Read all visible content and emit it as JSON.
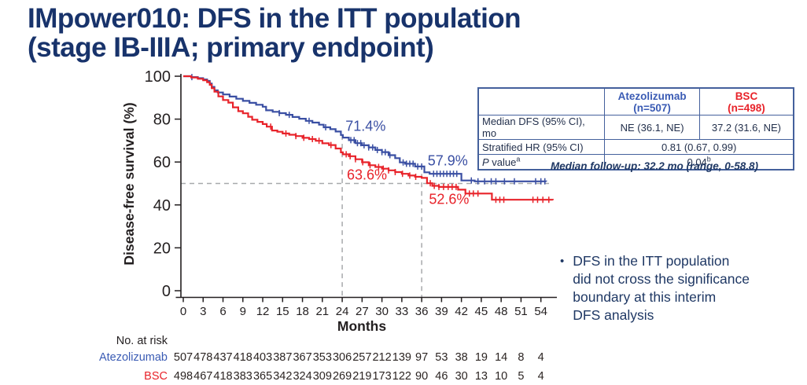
{
  "slide": {
    "title_line1": "IMpower010: DFS in the ITT population",
    "title_line2": "(stage IB-IIIA; primary endpoint)",
    "title_color": "#18336b"
  },
  "chart_data": {
    "type": "line",
    "subtype": "kaplan-meier-step",
    "xlabel": "Months",
    "ylabel": "Disease-free survival (%)",
    "xlim": [
      0,
      54
    ],
    "ylim": [
      0,
      100
    ],
    "xticks": [
      0,
      3,
      6,
      9,
      12,
      15,
      18,
      21,
      24,
      27,
      30,
      33,
      36,
      39,
      42,
      45,
      48,
      51,
      54
    ],
    "yticks": [
      0,
      20,
      40,
      60,
      80,
      100
    ],
    "grid": false,
    "axis_color": "#231f20",
    "reference_lines": {
      "dash_color": "#a7a9ac",
      "horizontal_pct": 50,
      "vertical": [
        {
          "month": 24,
          "top_pct": 72.5
        },
        {
          "month": 36,
          "top_pct": 58.5
        }
      ]
    },
    "series": [
      {
        "name": "Atezolizumab",
        "color": "#3a4fa3",
        "points": [
          [
            0,
            100
          ],
          [
            1.2,
            99.6
          ],
          [
            2.2,
            99.1
          ],
          [
            3,
            98.5
          ],
          [
            3.6,
            97.8
          ],
          [
            4,
            96.6
          ],
          [
            4.3,
            95
          ],
          [
            4.7,
            93.4
          ],
          [
            5.2,
            92.4
          ],
          [
            6,
            91.5
          ],
          [
            7,
            90.5
          ],
          [
            8,
            89.5
          ],
          [
            9,
            88.5
          ],
          [
            10,
            87.6
          ],
          [
            11,
            86.7
          ],
          [
            12,
            85.8
          ],
          [
            12.5,
            84.1
          ],
          [
            13.5,
            83.4
          ],
          [
            14.5,
            82.8
          ],
          [
            15.5,
            82
          ],
          [
            16.5,
            81
          ],
          [
            17.5,
            80.2
          ],
          [
            18.5,
            79.2
          ],
          [
            19.5,
            78.4
          ],
          [
            20.5,
            77.4
          ],
          [
            21.2,
            76.2
          ],
          [
            22.2,
            75.3
          ],
          [
            23,
            74.2
          ],
          [
            23.8,
            72.6
          ],
          [
            24.1,
            71.4
          ],
          [
            25,
            70.2
          ],
          [
            26,
            68.8
          ],
          [
            27,
            67.8
          ],
          [
            28,
            66.8
          ],
          [
            29,
            65.6
          ],
          [
            30,
            64.6
          ],
          [
            31,
            63.2
          ],
          [
            32,
            61.8
          ],
          [
            32.7,
            59.8
          ],
          [
            33.5,
            59.2
          ],
          [
            35,
            57.9
          ],
          [
            36.4,
            55.2
          ],
          [
            37.2,
            54.5
          ],
          [
            42,
            51.4
          ],
          [
            44,
            51
          ],
          [
            54.8,
            50.9
          ]
        ],
        "censor_months": [
          1.3,
          14.5,
          16,
          19,
          21.5,
          25.3,
          25.8,
          26.3,
          26.8,
          27.3,
          28,
          28.6,
          29.3,
          30,
          30.5,
          31.2,
          33.2,
          33.7,
          34.2,
          34.7,
          35.4,
          36,
          37.8,
          38.3,
          38.8,
          39.3,
          39.8,
          40.3,
          40.8,
          41.3,
          43.5,
          44.5,
          45.5,
          46.5,
          47.2,
          48.5,
          50,
          53.2,
          54,
          54.6
        ]
      },
      {
        "name": "BSC",
        "color": "#e8232a",
        "points": [
          [
            0,
            100
          ],
          [
            1.2,
            99.4
          ],
          [
            2.2,
            98.8
          ],
          [
            3,
            98.1
          ],
          [
            3.6,
            97.2
          ],
          [
            4,
            96
          ],
          [
            4.3,
            94.4
          ],
          [
            4.7,
            92.8
          ],
          [
            5.3,
            90.6
          ],
          [
            6,
            88.9
          ],
          [
            6.8,
            87.7
          ],
          [
            7.5,
            85.5
          ],
          [
            8.3,
            83.7
          ],
          [
            9,
            82.7
          ],
          [
            9.8,
            81.1
          ],
          [
            10.4,
            79.7
          ],
          [
            11.2,
            78.7
          ],
          [
            12,
            77.7
          ],
          [
            12.6,
            76.5
          ],
          [
            13.4,
            74.7
          ],
          [
            14.2,
            74.1
          ],
          [
            15,
            73.3
          ],
          [
            16,
            72.7
          ],
          [
            17,
            72.1
          ],
          [
            18,
            71.3
          ],
          [
            19,
            70.7
          ],
          [
            20,
            69.9
          ],
          [
            21,
            68.7
          ],
          [
            22,
            67.9
          ],
          [
            23,
            66.3
          ],
          [
            23.8,
            64.5
          ],
          [
            24.1,
            63.6
          ],
          [
            25,
            62.7
          ],
          [
            26,
            61.3
          ],
          [
            27,
            59.9
          ],
          [
            28,
            58.5
          ],
          [
            29,
            57.7
          ],
          [
            30,
            56.9
          ],
          [
            31,
            56.1
          ],
          [
            32,
            55.3
          ],
          [
            33,
            54.5
          ],
          [
            34,
            53.7
          ],
          [
            35,
            53.1
          ],
          [
            36,
            52.6
          ],
          [
            36.8,
            50.1
          ],
          [
            37.6,
            48.9
          ],
          [
            38.6,
            48.4
          ],
          [
            41.5,
            47.1
          ],
          [
            42.6,
            45.3
          ],
          [
            46.6,
            42.4
          ],
          [
            55.8,
            42.2
          ]
        ],
        "censor_months": [
          13.2,
          15.5,
          17,
          18.2,
          19.5,
          20.5,
          22.3,
          24.6,
          25.2,
          26,
          27.1,
          28.2,
          29.5,
          30.2,
          31,
          32,
          33.1,
          34.2,
          35.1,
          37.3,
          37.9,
          38.6,
          39.3,
          40,
          40.6,
          41.2,
          43.2,
          43.8,
          44.5,
          47.2,
          47.8,
          48.4,
          52.8,
          53.5,
          54.3,
          55.2
        ]
      }
    ],
    "point_labels": [
      {
        "text": "71.4%",
        "month": 24.5,
        "pct": 74.6,
        "color": "#3a4fa3"
      },
      {
        "text": "63.6%",
        "month": 24.7,
        "pct": 51.9,
        "color": "#e8232a"
      },
      {
        "text": "57.9%",
        "month": 36.9,
        "pct": 58.5,
        "color": "#3a4fa3"
      },
      {
        "text": "52.6%",
        "month": 37.1,
        "pct": 40.5,
        "color": "#e8232a"
      }
    ],
    "no_at_risk": {
      "label": "No. at risk",
      "label_color": "#231f20",
      "value_color": "#2b2422",
      "rows": [
        {
          "name": "Atezolizumab",
          "color": "#3a5bb4",
          "values": [
            "507",
            "478",
            "437",
            "418",
            "403",
            "387",
            "367",
            "353",
            "306",
            "257",
            "212",
            "139",
            "97",
            "53",
            "38",
            "19",
            "14",
            "8",
            "4"
          ]
        },
        {
          "name": "BSC",
          "color": "#e8232a",
          "values": [
            "498",
            "467",
            "418",
            "383",
            "365",
            "342",
            "324",
            "309",
            "269",
            "219",
            "173",
            "122",
            "90",
            "46",
            "30",
            "13",
            "10",
            "5",
            "4"
          ]
        }
      ]
    }
  },
  "summary_table": {
    "columns": [
      {
        "line1": "Atezolizumab",
        "line2": "(n=507)",
        "color": "#3a5bb4"
      },
      {
        "line1": "BSC",
        "line2": "(n=498)",
        "color": "#e8232a"
      }
    ],
    "rows": [
      {
        "label": "Median DFS (95% CI), mo",
        "values": [
          "NE (36.1, NE)",
          "37.2 (31.6, NE)"
        ]
      },
      {
        "label": "Stratified HR (95% CI)",
        "values": [
          "0.81 (0.67, 0.99)"
        ]
      },
      {
        "label_italic": "P",
        "label_text": " value",
        "label_sup": "a",
        "values": [
          "0.04"
        ],
        "value_sup": "b"
      }
    ]
  },
  "median_followup": {
    "text": "Median follow-up: 32.2 mo (range, 0-58.8)",
    "color": "#1f3864"
  },
  "bullet": {
    "marker": "•",
    "color": "#1f3864",
    "lines": [
      "DFS in the ITT population",
      "did not cross the significance",
      "boundary at this interim",
      "DFS analysis"
    ]
  }
}
